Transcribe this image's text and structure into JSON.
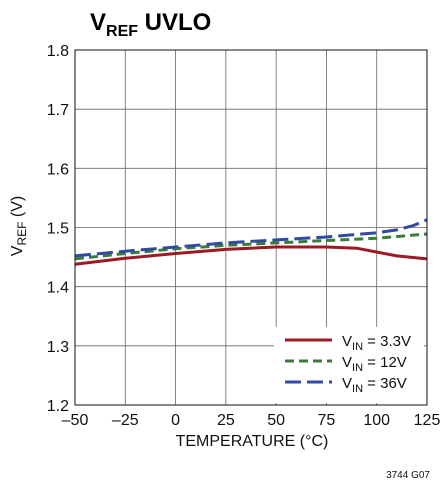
{
  "chart_data": {
    "type": "line",
    "title_main": "V",
    "title_sub": "REF",
    "title_rest": " UVLO",
    "ylabel_main": "V",
    "ylabel_sub": "REF",
    "ylabel_rest": " (V)",
    "xlabel": "TEMPERATURE (°C)",
    "xlim": [
      -50,
      125
    ],
    "ylim": [
      1.2,
      1.8
    ],
    "xticks": [
      -50,
      -25,
      0,
      25,
      50,
      75,
      100,
      125
    ],
    "xtick_labels": [
      "–50",
      "–25",
      "0",
      "25",
      "50",
      "75",
      "100",
      "125"
    ],
    "yticks": [
      1.2,
      1.3,
      1.4,
      1.5,
      1.6,
      1.7,
      1.8
    ],
    "ytick_labels": [
      "1.2",
      "1.3",
      "1.4",
      "1.5",
      "1.6",
      "1.7",
      "1.8"
    ],
    "grid": true,
    "legend_position": "bottom-right",
    "series": [
      {
        "name_main": "V",
        "name_sub": "IN",
        "name_rest": " = 3.3V",
        "color": "#9b1b24",
        "dash": "solid",
        "x": [
          -50,
          -25,
          0,
          25,
          50,
          75,
          90,
          110,
          125
        ],
        "y": [
          1.438,
          1.448,
          1.456,
          1.463,
          1.467,
          1.467,
          1.465,
          1.452,
          1.447
        ]
      },
      {
        "name_main": "V",
        "name_sub": "IN",
        "name_rest": " = 12V",
        "color": "#3a7d3a",
        "dash": "short-dash",
        "x": [
          -50,
          -25,
          0,
          25,
          50,
          75,
          100,
          125
        ],
        "y": [
          1.447,
          1.456,
          1.464,
          1.47,
          1.474,
          1.478,
          1.482,
          1.489
        ]
      },
      {
        "name_main": "V",
        "name_sub": "IN",
        "name_rest": " = 36V",
        "color": "#2f4ca0",
        "dash": "long-dash",
        "x": [
          -50,
          -25,
          0,
          25,
          50,
          75,
          100,
          110,
          118,
          125
        ],
        "y": [
          1.452,
          1.46,
          1.467,
          1.474,
          1.479,
          1.484,
          1.491,
          1.496,
          1.503,
          1.513
        ]
      }
    ]
  },
  "figure_id": "3744 G07"
}
